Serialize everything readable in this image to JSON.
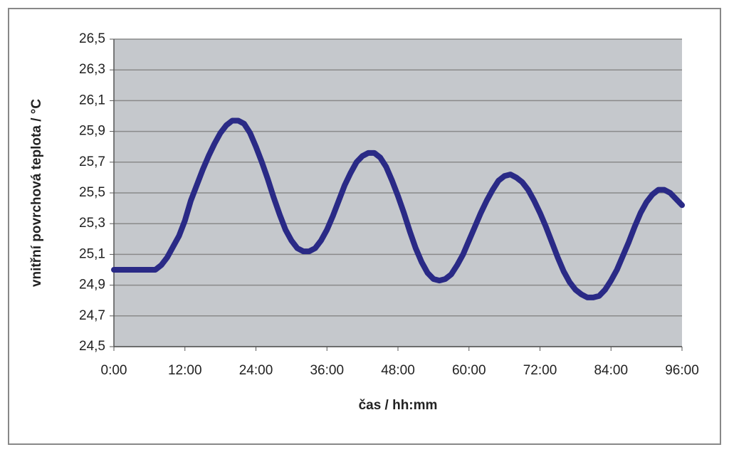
{
  "chart_data": {
    "type": "line",
    "x_label": "čas / hh:mm",
    "y_label": "vnitřní povrchová teplota / °C",
    "x": [
      0,
      1,
      2,
      3,
      4,
      5,
      6,
      7,
      8,
      9,
      10,
      11,
      12,
      13,
      14,
      15,
      16,
      17,
      18,
      19,
      20,
      21,
      22,
      23,
      24,
      25,
      26,
      27,
      28,
      29,
      30,
      31,
      32,
      33,
      34,
      35,
      36,
      37,
      38,
      39,
      40,
      41,
      42,
      43,
      44,
      45,
      46,
      47,
      48,
      49,
      50,
      51,
      52,
      53,
      54,
      55,
      56,
      57,
      58,
      59,
      60,
      61,
      62,
      63,
      64,
      65,
      66,
      67,
      68,
      69,
      70,
      71,
      72,
      73,
      74,
      75,
      76,
      77,
      78,
      79,
      80,
      81,
      82,
      83,
      84,
      85,
      86,
      87,
      88,
      89,
      90,
      91,
      92,
      93,
      94,
      95,
      96
    ],
    "series": [
      {
        "color": "#2a2a86",
        "values": [
          25.0,
          25.0,
          25.0,
          25.0,
          25.0,
          25.0,
          25.0,
          25.0,
          25.03,
          25.08,
          25.15,
          25.22,
          25.32,
          25.45,
          25.55,
          25.65,
          25.74,
          25.82,
          25.89,
          25.94,
          25.97,
          25.97,
          25.95,
          25.89,
          25.8,
          25.7,
          25.59,
          25.47,
          25.36,
          25.26,
          25.19,
          25.14,
          25.12,
          25.12,
          25.14,
          25.19,
          25.26,
          25.35,
          25.45,
          25.55,
          25.63,
          25.7,
          25.74,
          25.76,
          25.76,
          25.73,
          25.67,
          25.58,
          25.48,
          25.37,
          25.25,
          25.14,
          25.05,
          24.98,
          24.94,
          24.93,
          24.94,
          24.97,
          25.03,
          25.1,
          25.19,
          25.28,
          25.37,
          25.45,
          25.52,
          25.58,
          25.61,
          25.62,
          25.6,
          25.57,
          25.52,
          25.45,
          25.37,
          25.28,
          25.18,
          25.08,
          24.99,
          24.92,
          24.87,
          24.84,
          24.82,
          24.82,
          24.83,
          24.87,
          24.93,
          25.0,
          25.09,
          25.18,
          25.28,
          25.37,
          25.44,
          25.49,
          25.52,
          25.52,
          25.5,
          25.46,
          25.42
        ]
      }
    ],
    "xlim": [
      0,
      96
    ],
    "xticks": [
      {
        "value": 0,
        "label": "0:00"
      },
      {
        "value": 12,
        "label": "12:00"
      },
      {
        "value": 24,
        "label": "24:00"
      },
      {
        "value": 36,
        "label": "36:00"
      },
      {
        "value": 48,
        "label": "48:00"
      },
      {
        "value": 60,
        "label": "60:00"
      },
      {
        "value": 72,
        "label": "72:00"
      },
      {
        "value": 84,
        "label": "84:00"
      },
      {
        "value": 96,
        "label": "96:00"
      }
    ],
    "ylim": [
      24.5,
      26.5
    ],
    "yticks": [
      {
        "value": 24.5,
        "label": "24,5"
      },
      {
        "value": 24.7,
        "label": "24,7"
      },
      {
        "value": 24.9,
        "label": "24,9"
      },
      {
        "value": 25.1,
        "label": "25,1"
      },
      {
        "value": 25.3,
        "label": "25,3"
      },
      {
        "value": 25.5,
        "label": "25,5"
      },
      {
        "value": 25.7,
        "label": "25,7"
      },
      {
        "value": 25.9,
        "label": "25,9"
      },
      {
        "value": 26.1,
        "label": "26,1"
      },
      {
        "value": 26.3,
        "label": "26,3"
      },
      {
        "value": 26.5,
        "label": "26,5"
      }
    ],
    "grid": true
  }
}
